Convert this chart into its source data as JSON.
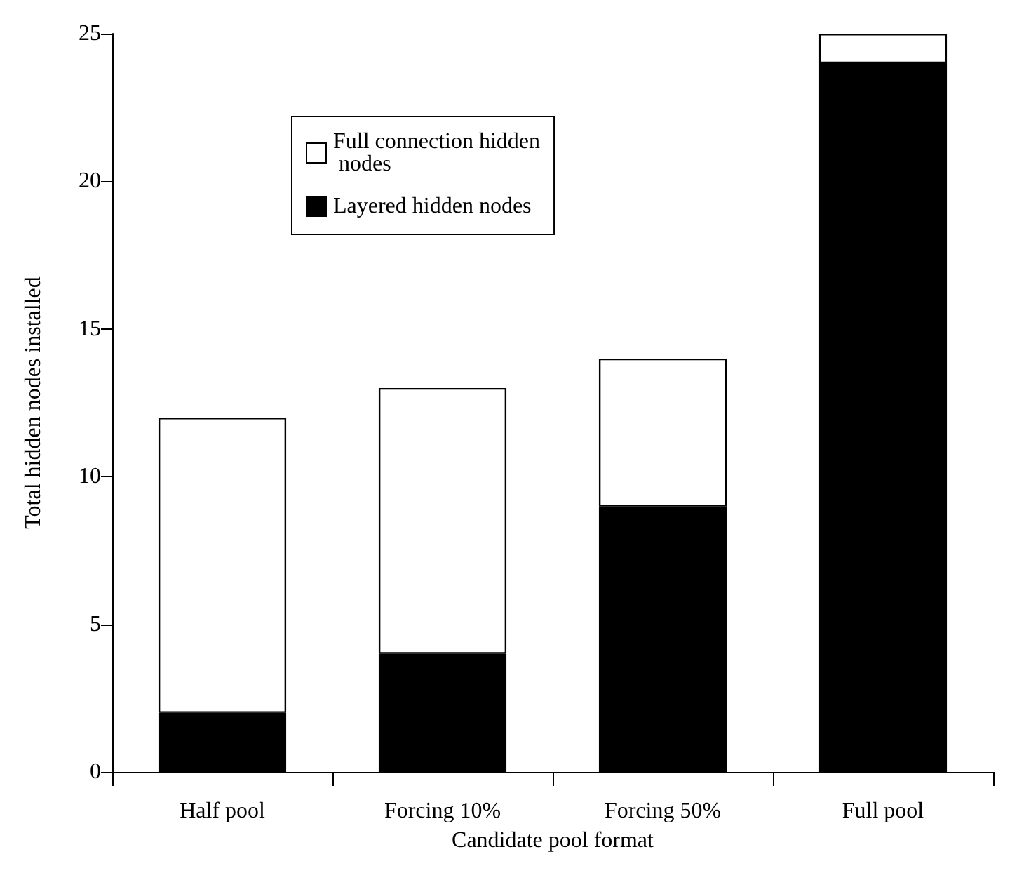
{
  "chart_data": {
    "type": "bar",
    "stacked": true,
    "xlabel": "Candidate pool format",
    "ylabel": "Total hidden nodes installed",
    "categories": [
      "Half pool",
      "Forcing 10%",
      "Forcing 50%",
      "Full pool"
    ],
    "series": [
      {
        "name": "Layered hidden nodes",
        "color": "#000000",
        "values": [
          2,
          4,
          9,
          24
        ]
      },
      {
        "name": "Full connection hidden nodes",
        "color": "#ffffff",
        "values": [
          10,
          9,
          5,
          1
        ]
      }
    ],
    "ylim": [
      0,
      25
    ],
    "yticks": [
      0,
      5,
      10,
      15,
      20,
      25
    ],
    "grid": false,
    "legend": "top left"
  }
}
